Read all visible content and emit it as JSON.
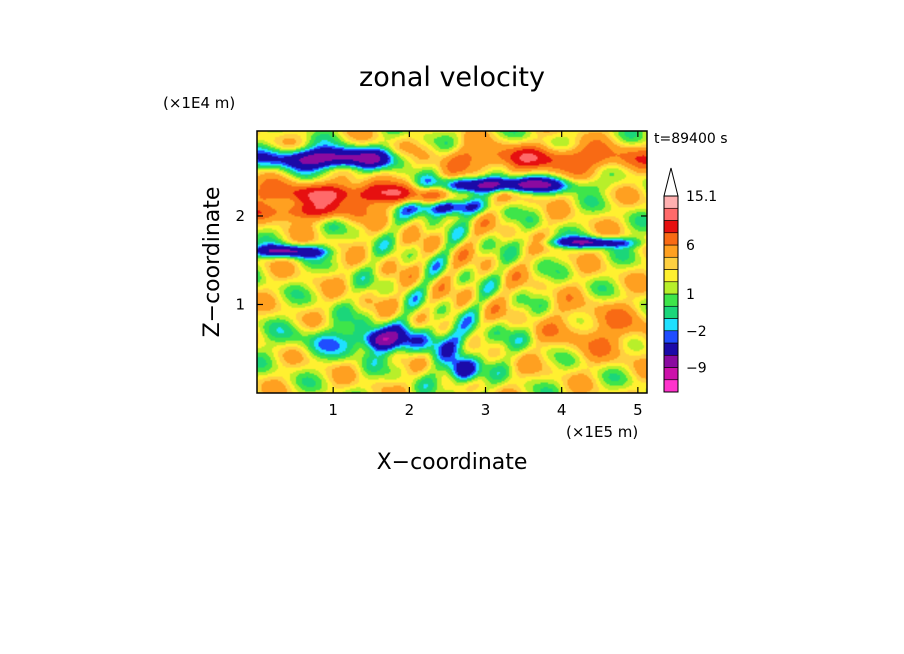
{
  "chart_data": {
    "type": "heatmap",
    "title": "zonal velocity",
    "xlabel": "X−coordinate",
    "ylabel": "Z−coordinate",
    "x_unit_label": "(×1E5 m)",
    "y_unit_label": "(×1E4 m)",
    "time_label": "t=89400 s",
    "xlim": [
      0,
      5.12
    ],
    "ylim": [
      0,
      2.96
    ],
    "x_ticks": [
      1,
      2,
      3,
      4,
      5
    ],
    "x_tick_labels": [
      "1",
      "2",
      "3",
      "4",
      "5"
    ],
    "y_ticks": [
      1,
      2
    ],
    "y_tick_labels": [
      "1",
      "2"
    ],
    "colorbar": {
      "levels": [
        -13,
        -11,
        -9,
        -6,
        -3,
        -2,
        -1,
        0,
        1,
        2,
        3,
        4,
        6,
        8,
        10.5,
        13,
        15.1
      ],
      "colors": [
        "#ff33cc",
        "#cc11aa",
        "#8a0aa0",
        "#1b0aa8",
        "#1f4dff",
        "#1fe0ff",
        "#1bd67a",
        "#3ee54a",
        "#b8ef2a",
        "#fff030",
        "#ffd040",
        "#ffa020",
        "#f86a14",
        "#e61010",
        "#ff6a6a",
        "#ffb0b0"
      ],
      "tick_values": [
        15.1,
        6,
        1,
        -2,
        -9
      ],
      "tick_labels": [
        "15.1",
        "6",
        "1",
        "−2",
        "−9"
      ],
      "extend": "max"
    },
    "field_description": "zonal velocity",
    "field_range": [
      -13,
      15.1
    ]
  }
}
